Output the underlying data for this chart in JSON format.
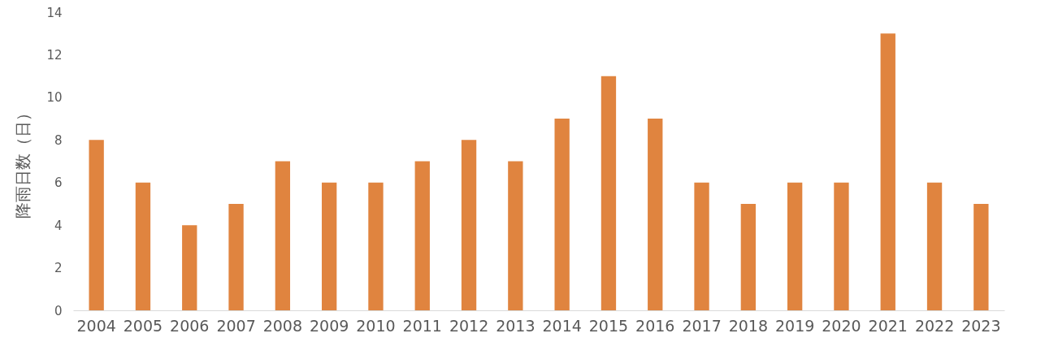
{
  "chart_data": {
    "type": "bar",
    "ylabel": "降雨日数（日）",
    "categories": [
      "2004",
      "2005",
      "2006",
      "2007",
      "2008",
      "2009",
      "2010",
      "2011",
      "2012",
      "2013",
      "2014",
      "2015",
      "2016",
      "2017",
      "2018",
      "2019",
      "2020",
      "2021",
      "2022",
      "2023"
    ],
    "values": [
      8,
      6,
      4,
      5,
      7,
      6,
      6,
      7,
      8,
      7,
      9,
      11,
      9,
      6,
      5,
      6,
      6,
      13,
      6,
      5
    ],
    "color": "#e0843f",
    "ylim": [
      0,
      14
    ],
    "yticks": [
      0,
      2,
      4,
      6,
      8,
      10,
      12,
      14
    ],
    "grid": false
  }
}
